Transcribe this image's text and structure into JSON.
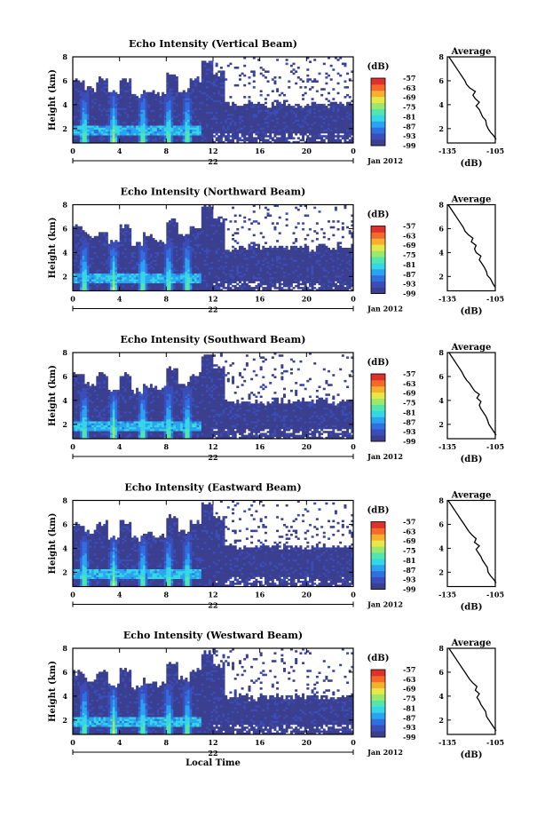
{
  "figure": {
    "x_axis_label": "Local Time",
    "date_label": "Jan 2012",
    "colorbar_unit": "(dB)"
  },
  "colors": {
    "colormap": [
      "#3b3f8f",
      "#3a4db8",
      "#2f6fe0",
      "#2aa3f0",
      "#35d6e6",
      "#4fe6b0",
      "#9be86a",
      "#e6e84a",
      "#f6b02e",
      "#f46a2a",
      "#e0302a"
    ],
    "background": "#ffffff",
    "line": "#000000"
  },
  "chart_data": [
    {
      "type": "heatmap",
      "title": "Echo Intensity (Vertical Beam)",
      "ylabel": "Height (km)",
      "xlabel": "Local Time",
      "x_ticks": [
        "0",
        "4",
        "8",
        "12",
        "16",
        "20",
        "0"
      ],
      "x_day_label": "22",
      "x_range_hours": [
        0,
        24
      ],
      "y_ticks": [
        "2",
        "4",
        "6",
        "8"
      ],
      "ylim": [
        0.8,
        8
      ],
      "colorbar": {
        "unit": "(dB)",
        "ticks": [
          "-57",
          "-63",
          "-69",
          "-75",
          "-81",
          "-87",
          "-93",
          "-99"
        ],
        "range": [
          -99,
          -57
        ]
      },
      "echo_top_km": [
        6.0,
        5.3,
        6.1,
        5.0,
        6.1,
        4.7,
        5.2,
        4.9,
        6.6,
        5.3,
        6.1,
        7.6,
        6.6,
        4.1,
        4.0,
        4.2,
        4.0,
        4.0,
        4.1,
        4.0,
        4.1,
        4.0,
        4.1,
        4.1
      ],
      "profile": {
        "title": "Average",
        "xlabel": "(dB)",
        "x_ticks": [
          "-135",
          "-105"
        ],
        "y_ticks": [
          "2",
          "4",
          "6",
          "8"
        ],
        "xlim": [
          -135,
          -105
        ],
        "ylim": [
          0.8,
          8
        ],
        "points": [
          [
            -104.5,
            1.1
          ],
          [
            -106,
            1.4
          ],
          [
            -108,
            1.7
          ],
          [
            -109.5,
            2.0
          ],
          [
            -110.5,
            2.3
          ],
          [
            -111,
            2.7
          ],
          [
            -113,
            3.0
          ],
          [
            -114,
            3.3
          ],
          [
            -115,
            3.6
          ],
          [
            -117,
            3.9
          ],
          [
            -115,
            4.2
          ],
          [
            -117.5,
            4.5
          ],
          [
            -119,
            4.8
          ],
          [
            -117.5,
            5.1
          ],
          [
            -121,
            5.4
          ],
          [
            -123,
            5.7
          ],
          [
            -124,
            6.0
          ],
          [
            -126,
            6.4
          ],
          [
            -128,
            6.8
          ],
          [
            -130,
            7.2
          ],
          [
            -132,
            7.6
          ],
          [
            -134,
            8.0
          ]
        ]
      }
    },
    {
      "type": "heatmap",
      "title": "Echo Intensity (Northward Beam)",
      "ylabel": "Height (km)",
      "xlabel": "Local Time",
      "x_ticks": [
        "0",
        "4",
        "8",
        "12",
        "16",
        "20",
        "0"
      ],
      "x_day_label": "22",
      "x_range_hours": [
        0,
        24
      ],
      "y_ticks": [
        "2",
        "4",
        "6",
        "8"
      ],
      "ylim": [
        0.8,
        8
      ],
      "colorbar": {
        "unit": "(dB)",
        "ticks": [
          "-57",
          "-63",
          "-69",
          "-75",
          "-81",
          "-87",
          "-93",
          "-99"
        ],
        "range": [
          -99,
          -57
        ]
      },
      "echo_top_km": [
        6.1,
        5.4,
        5.5,
        5.0,
        6.2,
        4.7,
        5.4,
        5.0,
        6.7,
        5.5,
        6.2,
        7.8,
        6.8,
        4.3,
        4.4,
        4.7,
        4.3,
        4.6,
        4.4,
        4.5,
        4.3,
        4.7,
        4.4,
        4.4
      ],
      "profile": {
        "title": "Average",
        "xlabel": "(dB)",
        "x_ticks": [
          "-135",
          "-105"
        ],
        "y_ticks": [
          "2",
          "4",
          "6",
          "8"
        ],
        "xlim": [
          -135,
          -105
        ],
        "ylim": [
          0.8,
          8
        ],
        "points": [
          [
            -105,
            1.1
          ],
          [
            -106.5,
            1.4
          ],
          [
            -108,
            1.8
          ],
          [
            -110,
            2.1
          ],
          [
            -110.5,
            2.4
          ],
          [
            -112,
            2.8
          ],
          [
            -113.5,
            3.1
          ],
          [
            -115,
            3.4
          ],
          [
            -114,
            3.7
          ],
          [
            -117,
            4.0
          ],
          [
            -118,
            4.3
          ],
          [
            -117,
            4.6
          ],
          [
            -120,
            4.9
          ],
          [
            -119,
            5.2
          ],
          [
            -122,
            5.5
          ],
          [
            -124,
            5.8
          ],
          [
            -125,
            6.1
          ],
          [
            -127,
            6.5
          ],
          [
            -129,
            6.9
          ],
          [
            -131,
            7.3
          ],
          [
            -133,
            7.7
          ],
          [
            -134.5,
            8.0
          ]
        ]
      }
    },
    {
      "type": "heatmap",
      "title": "Echo Intensity (Southward Beam)",
      "ylabel": "Height (km)",
      "xlabel": "Local Time",
      "x_ticks": [
        "0",
        "4",
        "8",
        "12",
        "16",
        "20",
        "0"
      ],
      "x_day_label": "22",
      "x_range_hours": [
        0,
        24
      ],
      "y_ticks": [
        "2",
        "4",
        "6",
        "8"
      ],
      "ylim": [
        0.8,
        8
      ],
      "colorbar": {
        "unit": "(dB)",
        "ticks": [
          "-57",
          "-63",
          "-69",
          "-75",
          "-81",
          "-87",
          "-93",
          "-99"
        ],
        "range": [
          -99,
          -57
        ]
      },
      "echo_top_km": [
        6.1,
        5.4,
        6.1,
        5.0,
        6.2,
        4.8,
        5.3,
        5.0,
        6.7,
        5.4,
        6.1,
        7.7,
        6.7,
        3.9,
        4.0,
        3.9,
        3.9,
        4.0,
        3.9,
        4.0,
        3.9,
        4.0,
        3.9,
        3.9
      ],
      "profile": {
        "title": "Average",
        "xlabel": "(dB)",
        "x_ticks": [
          "-135",
          "-105"
        ],
        "y_ticks": [
          "2",
          "4",
          "6",
          "8"
        ],
        "xlim": [
          -135,
          -105
        ],
        "ylim": [
          0.8,
          8
        ],
        "points": [
          [
            -104.5,
            1.1
          ],
          [
            -106,
            1.4
          ],
          [
            -107.5,
            1.7
          ],
          [
            -109,
            2.0
          ],
          [
            -110,
            2.4
          ],
          [
            -111,
            2.7
          ],
          [
            -112.5,
            3.0
          ],
          [
            -114,
            3.3
          ],
          [
            -115,
            3.6
          ],
          [
            -114,
            3.9
          ],
          [
            -116.5,
            4.2
          ],
          [
            -115,
            4.5
          ],
          [
            -118,
            4.8
          ],
          [
            -119.5,
            5.1
          ],
          [
            -121,
            5.4
          ],
          [
            -123,
            5.7
          ],
          [
            -124.5,
            6.0
          ],
          [
            -126,
            6.4
          ],
          [
            -128,
            6.8
          ],
          [
            -130,
            7.2
          ],
          [
            -132,
            7.6
          ],
          [
            -134,
            8.0
          ]
        ]
      }
    },
    {
      "type": "heatmap",
      "title": "Echo Intensity (Eastward Beam)",
      "ylabel": "Height (km)",
      "xlabel": "Local Time",
      "x_ticks": [
        "0",
        "4",
        "8",
        "12",
        "16",
        "20",
        "0"
      ],
      "x_day_label": "22",
      "x_range_hours": [
        0,
        24
      ],
      "y_ticks": [
        "2",
        "4",
        "6",
        "8"
      ],
      "ylim": [
        0.8,
        8
      ],
      "colorbar": {
        "unit": "(dB)",
        "ticks": [
          "-57",
          "-63",
          "-69",
          "-75",
          "-81",
          "-87",
          "-93",
          "-99"
        ],
        "range": [
          -99,
          -57
        ]
      },
      "echo_top_km": [
        6.0,
        5.4,
        6.1,
        5.0,
        6.2,
        4.8,
        5.3,
        5.0,
        6.7,
        5.4,
        6.1,
        7.6,
        6.6,
        4.2,
        4.1,
        4.2,
        4.1,
        4.1,
        4.2,
        4.1,
        4.2,
        4.1,
        4.2,
        4.2
      ],
      "profile": {
        "title": "Average",
        "xlabel": "(dB)",
        "x_ticks": [
          "-135",
          "-105"
        ],
        "y_ticks": [
          "2",
          "4",
          "6",
          "8"
        ],
        "xlim": [
          -135,
          -105
        ],
        "ylim": [
          0.8,
          8
        ],
        "points": [
          [
            -104.5,
            1.1
          ],
          [
            -106,
            1.4
          ],
          [
            -108,
            1.7
          ],
          [
            -109.5,
            2.0
          ],
          [
            -110,
            2.4
          ],
          [
            -111.5,
            2.7
          ],
          [
            -113,
            3.0
          ],
          [
            -114,
            3.3
          ],
          [
            -115.5,
            3.6
          ],
          [
            -117,
            3.9
          ],
          [
            -115,
            4.2
          ],
          [
            -118,
            4.5
          ],
          [
            -117,
            4.8
          ],
          [
            -119.5,
            5.1
          ],
          [
            -121.5,
            5.4
          ],
          [
            -123,
            5.7
          ],
          [
            -124.5,
            6.0
          ],
          [
            -126.5,
            6.4
          ],
          [
            -128.5,
            6.8
          ],
          [
            -130.5,
            7.2
          ],
          [
            -132.5,
            7.6
          ],
          [
            -134.5,
            8.0
          ]
        ]
      }
    },
    {
      "type": "heatmap",
      "title": "Echo Intensity (Westward Beam)",
      "ylabel": "Height (km)",
      "xlabel": "Local Time",
      "x_ticks": [
        "0",
        "4",
        "8",
        "12",
        "16",
        "20",
        "0"
      ],
      "x_day_label": "22",
      "x_range_hours": [
        0,
        24
      ],
      "y_ticks": [
        "2",
        "4",
        "6",
        "8"
      ],
      "ylim": [
        0.8,
        8
      ],
      "colorbar": {
        "unit": "(dB)",
        "ticks": [
          "-57",
          "-63",
          "-69",
          "-75",
          "-81",
          "-87",
          "-93",
          "-99"
        ],
        "range": [
          -99,
          -57
        ]
      },
      "echo_top_km": [
        6.0,
        5.4,
        6.1,
        5.0,
        6.2,
        4.8,
        5.3,
        5.0,
        6.7,
        5.4,
        6.1,
        7.6,
        6.6,
        4.0,
        4.0,
        3.9,
        4.0,
        4.0,
        3.9,
        4.0,
        4.0,
        3.9,
        4.0,
        4.0
      ],
      "profile": {
        "title": "Average",
        "xlabel": "(dB)",
        "x_ticks": [
          "-135",
          "-105"
        ],
        "y_ticks": [
          "2",
          "4",
          "6",
          "8"
        ],
        "xlim": [
          -135,
          -105
        ],
        "ylim": [
          0.8,
          8
        ],
        "points": [
          [
            -104.5,
            1.1
          ],
          [
            -106,
            1.4
          ],
          [
            -107.5,
            1.7
          ],
          [
            -109,
            2.0
          ],
          [
            -110.5,
            2.3
          ],
          [
            -111,
            2.7
          ],
          [
            -112.5,
            3.0
          ],
          [
            -114,
            3.3
          ],
          [
            -115,
            3.6
          ],
          [
            -116.5,
            3.9
          ],
          [
            -115,
            4.2
          ],
          [
            -117.5,
            4.5
          ],
          [
            -116.5,
            4.8
          ],
          [
            -119,
            5.1
          ],
          [
            -121,
            5.4
          ],
          [
            -122.5,
            5.7
          ],
          [
            -124,
            6.0
          ],
          [
            -126,
            6.4
          ],
          [
            -128,
            6.8
          ],
          [
            -130,
            7.2
          ],
          [
            -132,
            7.6
          ],
          [
            -134,
            8.0
          ]
        ]
      }
    }
  ]
}
